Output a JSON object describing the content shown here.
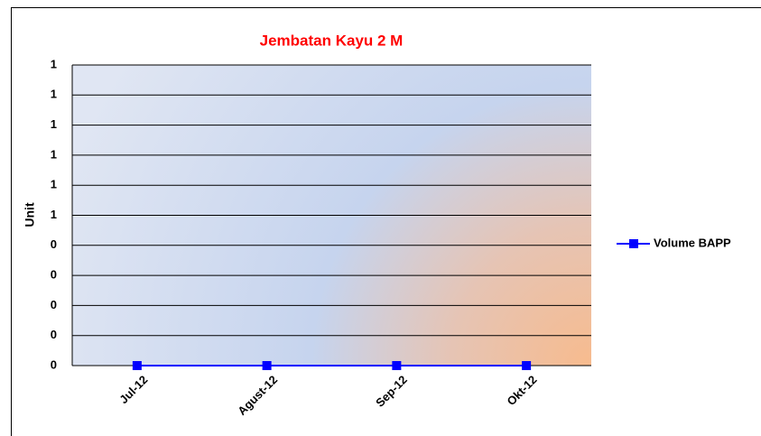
{
  "chart_data": {
    "type": "line",
    "title": "Jembatan Kayu 2 M",
    "ylabel": "Unit",
    "categories": [
      "Jul-12",
      "Agust-12",
      "Sep-12",
      "Okt-12"
    ],
    "series": [
      {
        "name": "Volume BAPP",
        "color": "#0000ff",
        "values": [
          0,
          0,
          0,
          0
        ]
      }
    ],
    "ylim": [
      0,
      1
    ],
    "yticks": [
      0,
      {
        "value": 0.1,
        "label": "0"
      },
      {
        "value": 0.2,
        "label": "0"
      },
      {
        "value": 0.3,
        "label": "0"
      },
      {
        "value": 0.4,
        "label": "0"
      },
      {
        "value": 0.5,
        "label": "1"
      },
      {
        "value": 0.6,
        "label": "1"
      },
      {
        "value": 0.7,
        "label": "1"
      },
      {
        "value": 0.8,
        "label": "1"
      },
      {
        "value": 0.9,
        "label": "1"
      },
      1
    ],
    "grid": true,
    "legend": "right"
  }
}
